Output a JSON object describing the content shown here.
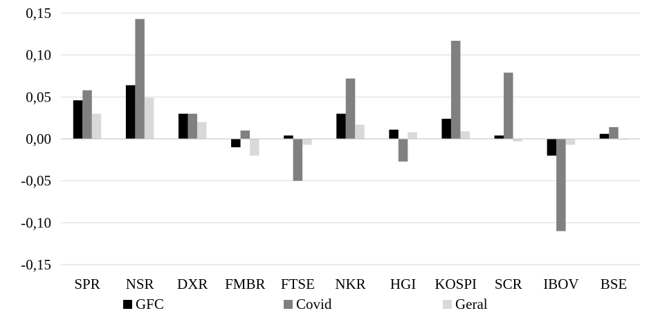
{
  "chart_data": {
    "type": "bar",
    "categories": [
      "SPR",
      "NSR",
      "DXR",
      "FMBR",
      "FTSE",
      "NKR",
      "HGI",
      "KOSPI",
      "SCR",
      "IBOV",
      "BSE"
    ],
    "series": [
      {
        "name": "GFC",
        "color": "#000000",
        "values": [
          0.046,
          0.064,
          0.03,
          -0.01,
          0.004,
          0.03,
          0.011,
          0.024,
          0.004,
          -0.02,
          0.006
        ]
      },
      {
        "name": "Covid",
        "color": "#808080",
        "values": [
          0.058,
          0.143,
          0.03,
          0.01,
          -0.05,
          0.072,
          -0.027,
          0.117,
          0.079,
          -0.11,
          0.014
        ]
      },
      {
        "name": "Geral",
        "color": "#d9d9d9",
        "values": [
          0.03,
          0.049,
          0.02,
          -0.02,
          -0.007,
          0.017,
          0.008,
          0.009,
          -0.003,
          -0.007,
          -0.001
        ]
      }
    ],
    "ylim": [
      -0.15,
      0.15
    ],
    "yticks": [
      "-0,15",
      "-0,10",
      "-0,05",
      "0,00",
      "0,05",
      "0,10",
      "0,15"
    ],
    "grid": true,
    "legend_position": "bottom",
    "xlabel": "",
    "ylabel": ""
  }
}
